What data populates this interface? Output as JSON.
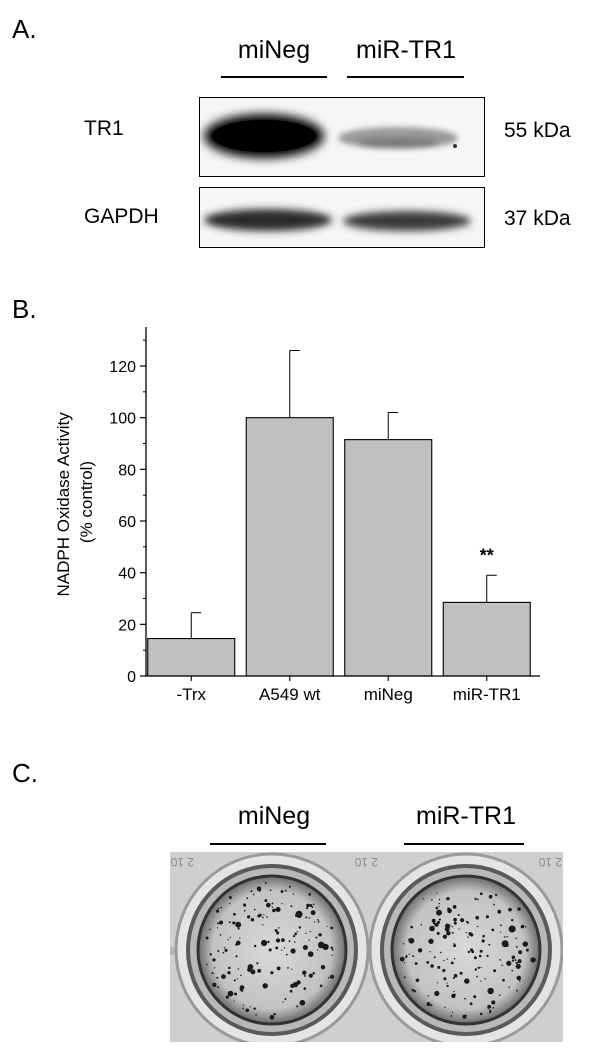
{
  "panel_a": {
    "letter": "A.",
    "lanes": [
      "miNeg",
      "miR-TR1"
    ],
    "rows": [
      {
        "label": "TR1",
        "kda": "55 kDa"
      },
      {
        "label": "GAPDH",
        "kda": "37 kDa"
      }
    ]
  },
  "panel_b": {
    "letter": "B."
  },
  "panel_c": {
    "letter": "C.",
    "lanes": [
      "miNeg",
      "miR-TR1"
    ],
    "plate_text": [
      "2 10",
      "2 10",
      "2 10"
    ]
  },
  "chart_data": {
    "type": "bar",
    "title": "",
    "ylabel": "NADPH Oxidase Activity\n(% control)",
    "xlabel": "",
    "categories": [
      "-Trx",
      "A549 wt",
      "miNeg",
      "miR-TR1"
    ],
    "values": [
      14.5,
      100,
      91.5,
      28.5
    ],
    "errors": [
      10,
      26,
      10.5,
      10.5
    ],
    "annotations": [
      {
        "category": "miR-TR1",
        "text": "**"
      }
    ],
    "ylim": [
      0,
      132
    ],
    "yticks": [
      0,
      20,
      40,
      60,
      80,
      100,
      120
    ],
    "grid": false,
    "bar_color": "#c0c0c0"
  }
}
